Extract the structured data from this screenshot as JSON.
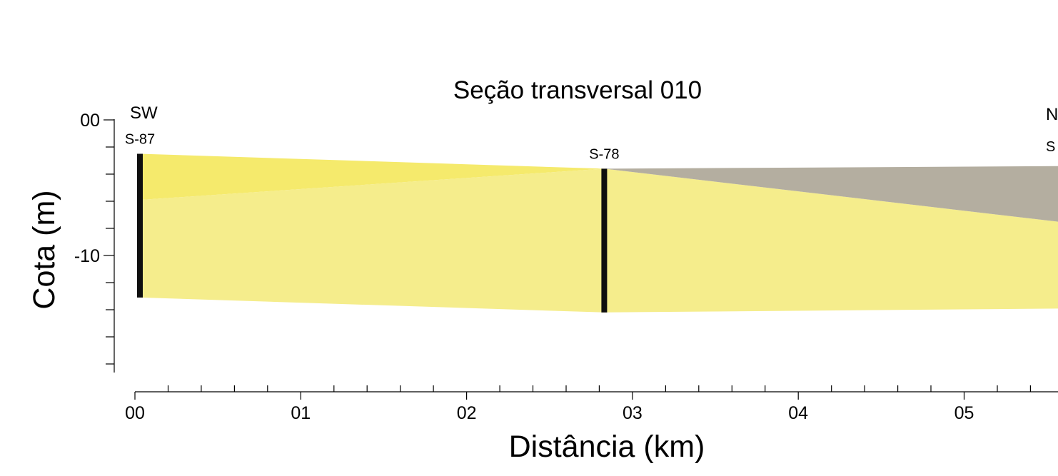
{
  "chart_data": {
    "type": "area",
    "title": "Seção transversal 010",
    "xlabel": "Distância (km)",
    "ylabel": "Cota (m)",
    "xlim": [
      0,
      5.7
    ],
    "ylim": [
      -18.5,
      0
    ],
    "x_ticks": [
      {
        "value": 0,
        "label": "00"
      },
      {
        "value": 1,
        "label": "01"
      },
      {
        "value": 2,
        "label": "02"
      },
      {
        "value": 3,
        "label": "03"
      },
      {
        "value": 4,
        "label": "04"
      },
      {
        "value": 5,
        "label": "05"
      }
    ],
    "x_minor_step": 0.2,
    "y_ticks": [
      {
        "value": 0,
        "label": "00"
      },
      {
        "value": -10,
        "label": "-10"
      }
    ],
    "y_minor_step": 2,
    "directions": {
      "left": "SW",
      "right": "N"
    },
    "wells": [
      {
        "name": "S-87",
        "x": 0.03,
        "top": -2.5,
        "bottom": -13.1
      },
      {
        "name": "S-78",
        "x": 2.83,
        "top": -3.6,
        "bottom": -14.2
      },
      {
        "name": "S",
        "x": 5.85,
        "top": null,
        "bottom": null
      }
    ],
    "layers": [
      {
        "color": "#f5ea6c",
        "points": [
          [
            0.03,
            -2.5
          ],
          [
            2.83,
            -3.6
          ],
          [
            0.03,
            -5.9
          ]
        ]
      },
      {
        "color": "#f5ed8c",
        "points": [
          [
            0.03,
            -5.9
          ],
          [
            2.83,
            -3.6
          ],
          [
            5.7,
            -7.7
          ],
          [
            5.7,
            -13.9
          ],
          [
            2.83,
            -14.2
          ],
          [
            0.03,
            -13.1
          ]
        ]
      },
      {
        "color": "#b4aea0",
        "points": [
          [
            2.83,
            -3.6
          ],
          [
            5.7,
            -3.4
          ],
          [
            5.7,
            -7.7
          ]
        ]
      }
    ]
  }
}
